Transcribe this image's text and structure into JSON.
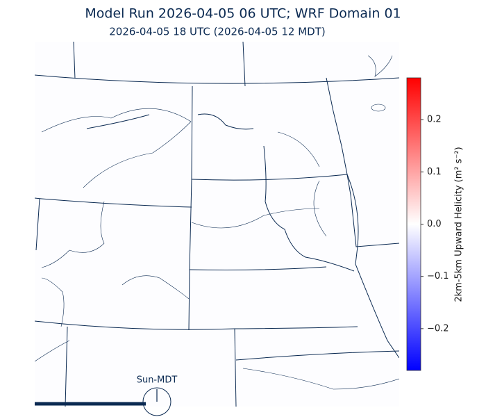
{
  "header": {
    "title": "Model Run 2026-04-05 06 UTC; WRF Domain 01",
    "subtitle": "2026-04-05 18 UTC  (2026-04-05 12 MDT)"
  },
  "colorbar": {
    "label": "2km-5km Upward Helicity (m² s⁻²)",
    "lim": [
      -0.28,
      0.28
    ],
    "colors": [
      "#0000ff",
      "#ffffff",
      "#ff0000"
    ],
    "ticks": [
      0.2,
      0.1,
      {
        "value": 0,
        "label": "0.0"
      },
      {
        "value": -0.1,
        "label": "−0.1"
      },
      {
        "value": -0.2,
        "label": "−0.2"
      }
    ]
  },
  "timeline": {
    "label": "Sun-MDT"
  }
}
